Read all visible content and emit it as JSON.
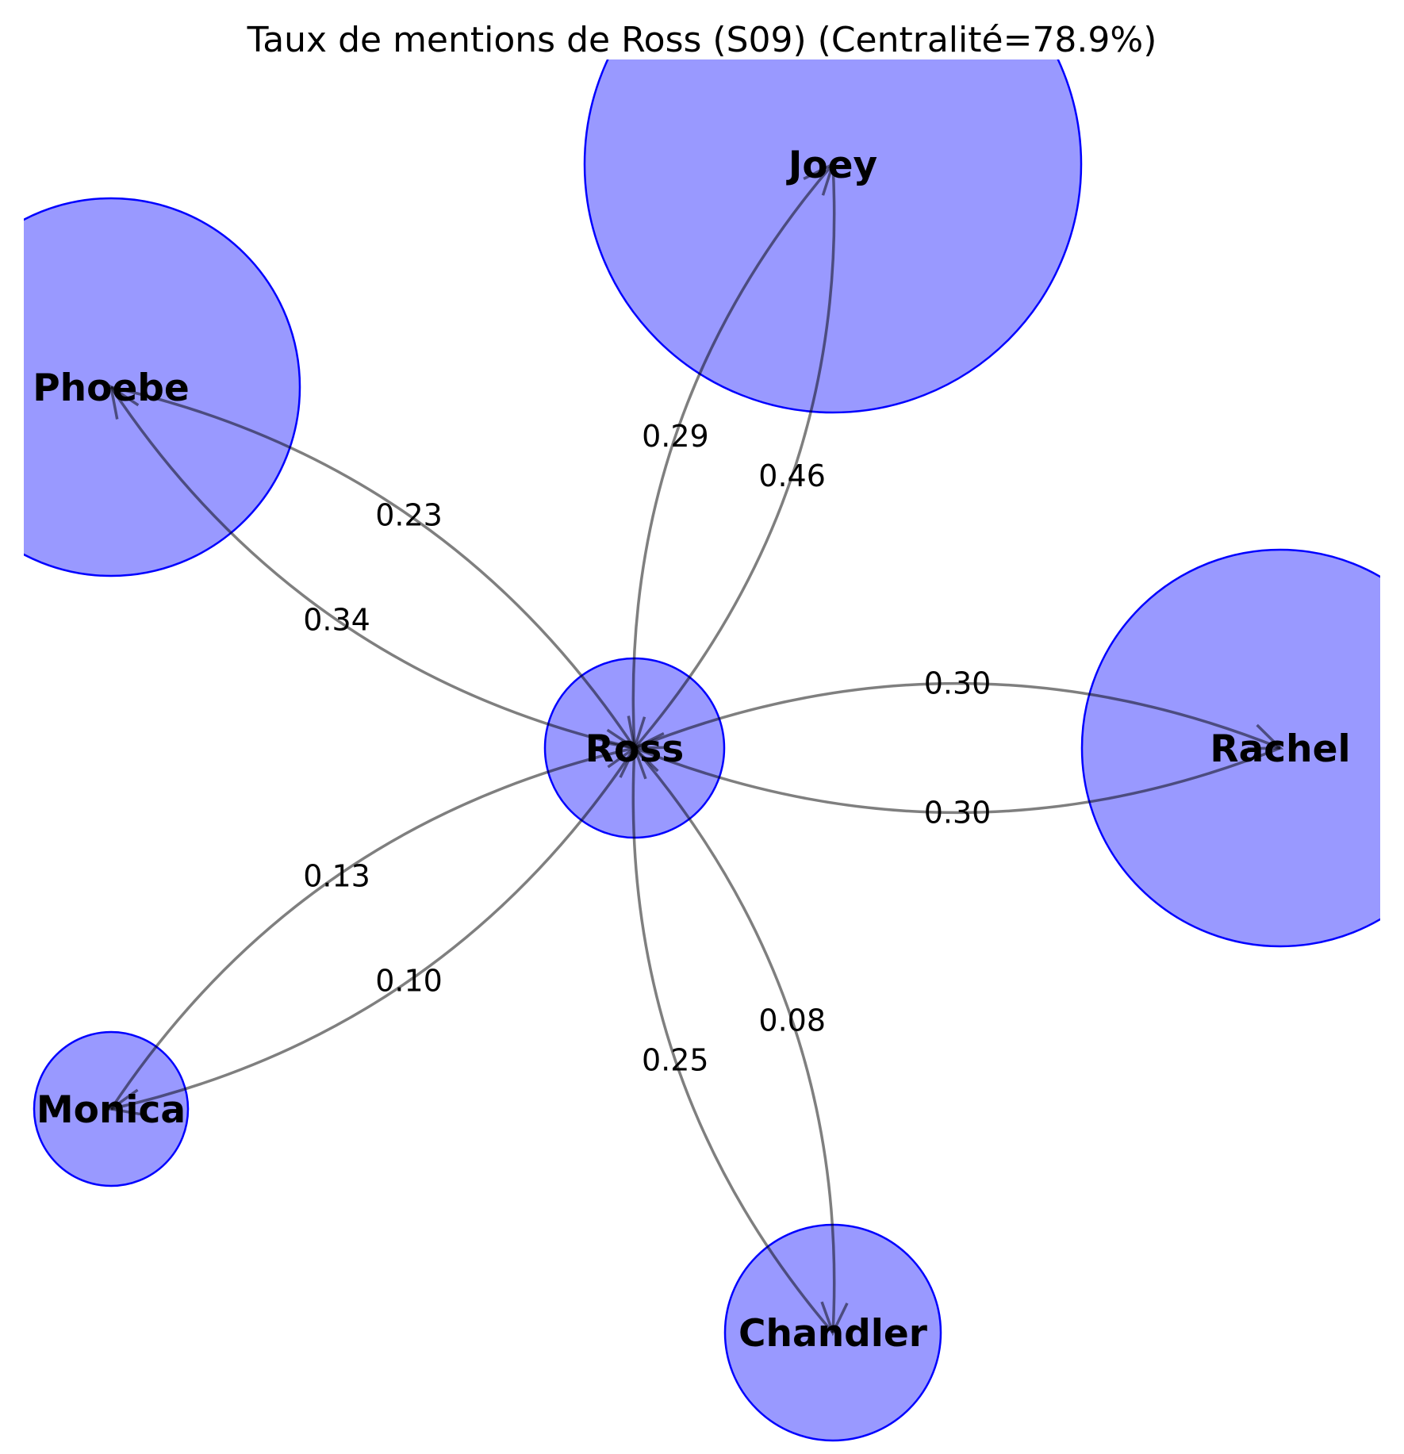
{
  "title": "Taux de mentions de Ross (S09) (Centralité=78.9%)",
  "colors": {
    "node_fill": "#0000ff",
    "node_stroke": "#0000ff",
    "edge": "#000000"
  },
  "nodes": [
    {
      "id": "Ross",
      "label": "Ross"
    },
    {
      "id": "Joey",
      "label": "Joey"
    },
    {
      "id": "Phoebe",
      "label": "Phoebe"
    },
    {
      "id": "Rachel",
      "label": "Rachel"
    },
    {
      "id": "Monica",
      "label": "Monica"
    },
    {
      "id": "Chandler",
      "label": "Chandler"
    }
  ],
  "edges": [
    {
      "source": "Ross",
      "target": "Joey",
      "weight": "0.29"
    },
    {
      "source": "Joey",
      "target": "Ross",
      "weight": "0.46"
    },
    {
      "source": "Ross",
      "target": "Phoebe",
      "weight": "0.34"
    },
    {
      "source": "Phoebe",
      "target": "Ross",
      "weight": "0.23"
    },
    {
      "source": "Ross",
      "target": "Rachel",
      "weight": "0.30"
    },
    {
      "source": "Rachel",
      "target": "Ross",
      "weight": "0.30"
    },
    {
      "source": "Ross",
      "target": "Monica",
      "weight": "0.10"
    },
    {
      "source": "Monica",
      "target": "Ross",
      "weight": "0.13"
    },
    {
      "source": "Ross",
      "target": "Chandler",
      "weight": "0.08"
    },
    {
      "source": "Chandler",
      "target": "Ross",
      "weight": "0.25"
    }
  ]
}
